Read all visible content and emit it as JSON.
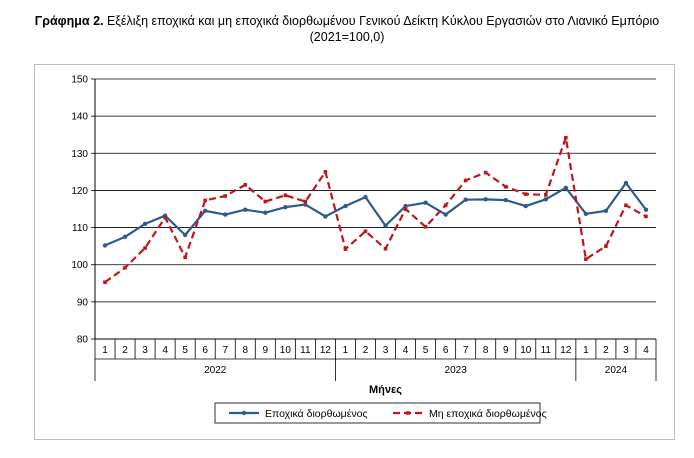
{
  "title": {
    "prefix": "Γράφημα 2.",
    "text": " Εξέλιξη εποχικά και μη εποχικά διορθωμένου Γενικού Δείκτη Κύκλου Εργασιών στο Λιανικό Εμπόριο",
    "subtitle": "(2021=100,0)"
  },
  "chart_data": {
    "type": "line",
    "xlabel": "Μήνες",
    "ylabel": "",
    "ylim": [
      80,
      150
    ],
    "yticks": [
      80,
      90,
      100,
      110,
      120,
      130,
      140,
      150
    ],
    "grid": true,
    "legend_position": "bottom",
    "categories": [
      "1",
      "2",
      "3",
      "4",
      "5",
      "6",
      "7",
      "8",
      "9",
      "10",
      "11",
      "12",
      "1",
      "2",
      "3",
      "4",
      "5",
      "6",
      "7",
      "8",
      "9",
      "10",
      "11",
      "12",
      "1",
      "2",
      "3",
      "4"
    ],
    "years": [
      {
        "label": "2022",
        "count": 12
      },
      {
        "label": "2023",
        "count": 12
      },
      {
        "label": "2024",
        "count": 4
      }
    ],
    "series": [
      {
        "name": "Εποχικά διορθωμένος",
        "color": "#2e5b8f",
        "style": "solid",
        "marker": "circle",
        "values": [
          105.2,
          107.5,
          111.0,
          113.2,
          108.0,
          114.5,
          113.5,
          114.8,
          114.0,
          115.5,
          116.2,
          113.0,
          115.8,
          118.2,
          110.5,
          115.8,
          116.7,
          113.5,
          117.5,
          117.6,
          117.4,
          115.8,
          117.6,
          120.7,
          113.7,
          114.5,
          122.0,
          114.8
        ]
      },
      {
        "name": "Μη εποχικά διορθωμένος",
        "color": "#c0161b",
        "style": "dashed",
        "marker": "square",
        "values": [
          95.3,
          99.2,
          104.5,
          112.7,
          102.0,
          117.3,
          118.5,
          121.5,
          117.0,
          118.7,
          117.0,
          125.0,
          104.2,
          109.0,
          104.3,
          115.0,
          110.2,
          116.0,
          122.7,
          124.8,
          121.0,
          119.0,
          118.8,
          134.2,
          101.5,
          105.0,
          116.0,
          113.0
        ]
      }
    ]
  }
}
